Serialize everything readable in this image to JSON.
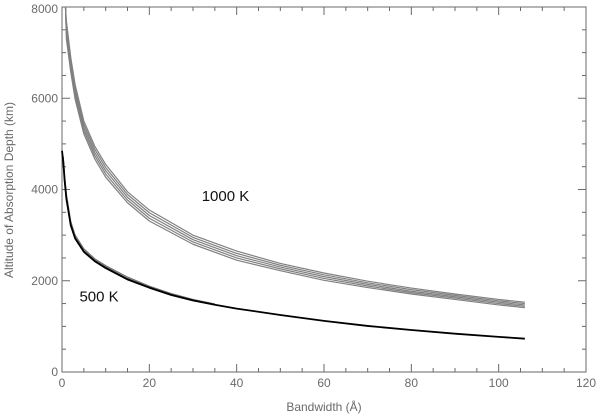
{
  "chart_data": {
    "type": "line",
    "xlabel": "Bandwidth (Å)",
    "ylabel": "Altitude of Absorption Depth (km)",
    "xlim": [
      0,
      120
    ],
    "ylim": [
      0,
      8000
    ],
    "xticks": [
      0,
      20,
      40,
      60,
      80,
      100,
      120
    ],
    "yticks": [
      0,
      2000,
      4000,
      6000,
      8000
    ],
    "xtick_labels": [
      "0",
      "20",
      "40",
      "60",
      "80",
      "100",
      "120"
    ],
    "ytick_labels": [
      "0",
      "2000",
      "4000",
      "6000",
      "8000"
    ],
    "grid": false,
    "annotations": [
      {
        "text": "1000 K",
        "x": 32,
        "y": 3750
      },
      {
        "text": "500 K",
        "x": 4,
        "y": 1550
      }
    ],
    "series": [
      {
        "group": "1000 K",
        "color": "#808080",
        "x": [
          0.8,
          1,
          2,
          3,
          5,
          7.5,
          10,
          15,
          20,
          30,
          40,
          50,
          60,
          70,
          80,
          90,
          100,
          106
        ],
        "y": [
          8000,
          7700,
          6900,
          6300,
          5500,
          4950,
          4550,
          3950,
          3550,
          3000,
          2650,
          2380,
          2170,
          1990,
          1840,
          1710,
          1590,
          1530
        ]
      },
      {
        "group": "1000 K",
        "color": "#808080",
        "x": [
          0.8,
          1,
          2,
          3,
          5,
          7.5,
          10,
          15,
          20,
          30,
          40,
          50,
          60,
          70,
          80,
          90,
          100,
          106
        ],
        "y": [
          8000,
          7600,
          6820,
          6220,
          5430,
          4880,
          4480,
          3890,
          3490,
          2950,
          2600,
          2340,
          2130,
          1955,
          1805,
          1680,
          1560,
          1500
        ]
      },
      {
        "group": "1000 K",
        "color": "#808080",
        "x": [
          0.8,
          1,
          2,
          3,
          5,
          7.5,
          10,
          15,
          20,
          30,
          40,
          50,
          60,
          70,
          80,
          90,
          100,
          106
        ],
        "y": [
          8000,
          7500,
          6740,
          6140,
          5360,
          4810,
          4410,
          3830,
          3430,
          2900,
          2550,
          2300,
          2090,
          1920,
          1770,
          1650,
          1530,
          1470
        ]
      },
      {
        "group": "1000 K",
        "color": "#808080",
        "x": [
          0.8,
          1,
          2,
          3,
          5,
          7.5,
          10,
          15,
          20,
          30,
          40,
          50,
          60,
          70,
          80,
          90,
          100,
          106
        ],
        "y": [
          8000,
          7400,
          6660,
          6060,
          5290,
          4740,
          4340,
          3770,
          3370,
          2850,
          2500,
          2260,
          2050,
          1885,
          1740,
          1620,
          1500,
          1440
        ]
      },
      {
        "group": "1000 K",
        "color": "#808080",
        "x": [
          0.8,
          1,
          2,
          3,
          5,
          7.5,
          10,
          15,
          20,
          30,
          40,
          50,
          60,
          70,
          80,
          90,
          100,
          106
        ],
        "y": [
          8000,
          7300,
          6580,
          5980,
          5220,
          4670,
          4270,
          3710,
          3310,
          2800,
          2450,
          2220,
          2010,
          1850,
          1710,
          1590,
          1470,
          1410
        ]
      },
      {
        "group": "500 K",
        "color": "#707070",
        "x": [
          0,
          0.3,
          0.6,
          1,
          2,
          3,
          5,
          7.5,
          10,
          15,
          20,
          25,
          30,
          35
        ],
        "y": [
          4800,
          4700,
          4300,
          3900,
          3300,
          3000,
          2700,
          2480,
          2330,
          2080,
          1880,
          1720,
          1590,
          1490
        ]
      },
      {
        "group": "500 K",
        "color": "#707070",
        "x": [
          0,
          0.3,
          0.6,
          1,
          2,
          3,
          5,
          7.5,
          10,
          15,
          20,
          25,
          30,
          35
        ],
        "y": [
          4780,
          4650,
          4240,
          3840,
          3250,
          2960,
          2660,
          2450,
          2300,
          2050,
          1860,
          1700,
          1575,
          1480
        ]
      },
      {
        "group": "500 K",
        "color": "#707070",
        "x": [
          0,
          0.3,
          0.6,
          1,
          2,
          3,
          5,
          7.5,
          10,
          15,
          20,
          25,
          30,
          35
        ],
        "y": [
          4760,
          4600,
          4180,
          3780,
          3200,
          2920,
          2620,
          2420,
          2270,
          2020,
          1840,
          1680,
          1560,
          1470
        ]
      },
      {
        "group": "500 K",
        "color": "#000000",
        "x": [
          0,
          0.3,
          0.6,
          1,
          2,
          3,
          5,
          7.5,
          10,
          15,
          20,
          25,
          30,
          35,
          40,
          50,
          60,
          70,
          80,
          90,
          100,
          106
        ],
        "y": [
          4850,
          4600,
          4200,
          3800,
          3220,
          2930,
          2640,
          2430,
          2280,
          2030,
          1850,
          1690,
          1570,
          1475,
          1390,
          1250,
          1120,
          1010,
          920,
          840,
          770,
          730
        ]
      }
    ]
  }
}
